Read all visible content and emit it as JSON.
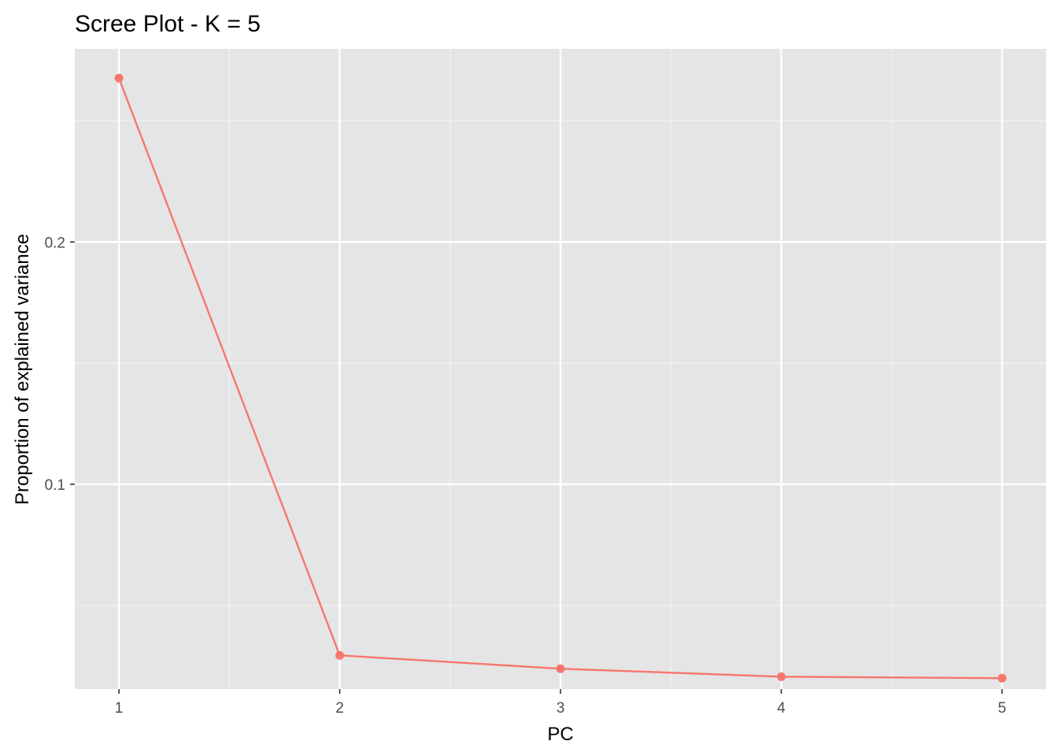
{
  "chart_data": {
    "type": "line",
    "title": "Scree Plot - K = 5",
    "xlabel": "PC",
    "ylabel": "Proportion of explained variance",
    "x": [
      1,
      2,
      3,
      4,
      5
    ],
    "series": [
      {
        "values": [
          0.2676,
          0.0294,
          0.0239,
          0.0206,
          0.02
        ],
        "color": "#f8766d"
      }
    ],
    "xlim": [
      0.8,
      5.2
    ],
    "ylim": [
      0.0155,
      0.2797
    ],
    "x_ticks": [
      1,
      2,
      3,
      4,
      5
    ],
    "x_tick_labels": [
      "1",
      "2",
      "3",
      "4",
      "5"
    ],
    "y_ticks": [
      0.1,
      0.2
    ],
    "y_tick_labels": [
      "0.1",
      "0.2"
    ],
    "y_minor_ticks": [
      0.05,
      0.15,
      0.25
    ],
    "panel_background": "#e5e5e5",
    "grid": true,
    "legend": "none"
  }
}
